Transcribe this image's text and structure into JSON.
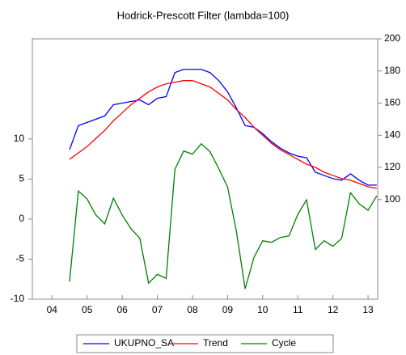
{
  "chart_data": {
    "type": "line",
    "title": "Hodrick-Prescott Filter (lambda=100)",
    "x": [
      0,
      1,
      2,
      3,
      4,
      5,
      6,
      7,
      8,
      9,
      10,
      11,
      12,
      13,
      14,
      15,
      16,
      17,
      18,
      19,
      20,
      21,
      22,
      23,
      24,
      25,
      26,
      27,
      28,
      29,
      30,
      31,
      32,
      33,
      34,
      35
    ],
    "xlim": [
      -4.24,
      35.1
    ],
    "xticks": [
      {
        "value": -2,
        "label": "04"
      },
      {
        "value": 2,
        "label": "05"
      },
      {
        "value": 6,
        "label": "06"
      },
      {
        "value": 10,
        "label": "07"
      },
      {
        "value": 14,
        "label": "08"
      },
      {
        "value": 18,
        "label": "09"
      },
      {
        "value": 22,
        "label": "10"
      },
      {
        "value": 26,
        "label": "11"
      },
      {
        "value": 30,
        "label": "12"
      },
      {
        "value": 34,
        "label": "13"
      }
    ],
    "ylim": [
      -10,
      22.5
    ],
    "yticks": [
      -10,
      -5,
      0,
      5,
      10
    ],
    "y2lim": [
      38,
      200
    ],
    "y2ticks": [
      100,
      120,
      140,
      160,
      180,
      200
    ],
    "legend": "bottom",
    "series": [
      {
        "name": "UKUPNO_SA",
        "color": "#0000ff",
        "axis": "y2",
        "values": [
          131,
          146,
          148,
          150,
          152,
          159,
          160,
          161,
          162,
          159,
          163,
          164,
          179,
          181,
          181,
          181,
          179,
          174,
          167,
          157,
          146,
          145,
          141,
          136,
          132,
          129,
          127,
          126,
          117,
          115,
          113,
          112,
          116,
          112,
          109,
          109
        ]
      },
      {
        "name": "Trend",
        "color": "#ff0000",
        "axis": "y2",
        "values": [
          125,
          129,
          133,
          138,
          143,
          149,
          154,
          159,
          163,
          167,
          170,
          172,
          173,
          174,
          174,
          172,
          170,
          166,
          162,
          156,
          151,
          145,
          140,
          135,
          131,
          128,
          125,
          122,
          120,
          117,
          115,
          113,
          112,
          110,
          108,
          107
        ]
      },
      {
        "name": "Cycle",
        "color": "#008000",
        "values": [
          -7.8,
          3.5,
          2.5,
          0.5,
          -0.6,
          2.6,
          0.5,
          -1.2,
          -2.4,
          -8.0,
          -6.9,
          -7.4,
          6.2,
          8.5,
          8.1,
          9.4,
          8.4,
          6.3,
          4.0,
          -1.5,
          -8.7,
          -4.8,
          -2.7,
          -2.9,
          -2.3,
          -2.1,
          0.6,
          2.4,
          -3.8,
          -2.7,
          -3.4,
          -2.4,
          3.3,
          1.9,
          1.1,
          2.9
        ]
      }
    ]
  }
}
